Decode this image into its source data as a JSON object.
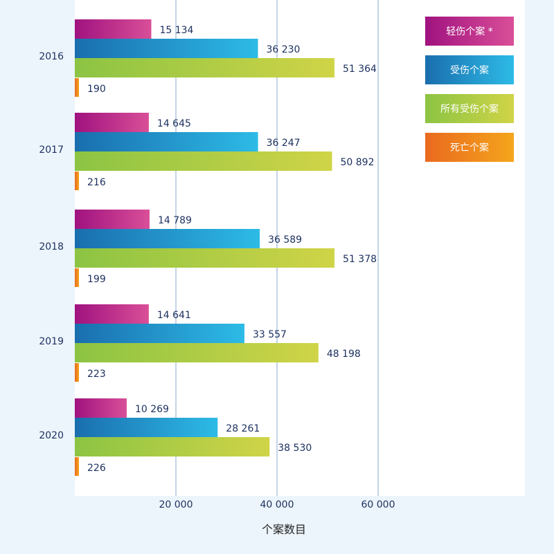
{
  "chart_data": {
    "type": "bar",
    "orientation": "horizontal",
    "title": "",
    "xlabel": "个案数目",
    "ylabel": "",
    "xlim": [
      0,
      89000
    ],
    "xticks": [
      20000,
      40000,
      60000
    ],
    "xtick_labels": [
      "20 000",
      "40 000",
      "60 000"
    ],
    "grid": true,
    "legend_position": "top-right",
    "categories": [
      "2016",
      "2017",
      "2018",
      "2019",
      "2020"
    ],
    "series": [
      {
        "name": "轻伤个案 *",
        "key": "minor",
        "color_start": "#a0127f",
        "color_end": "#d94f98",
        "values": [
          15134,
          14645,
          14789,
          14641,
          10269
        ],
        "labels": [
          "15 134",
          "14 645",
          "14 789",
          "14 641",
          "10 269"
        ]
      },
      {
        "name": "受伤个案",
        "key": "injury",
        "color_start": "#1a6eae",
        "color_end": "#2dbbe6",
        "values": [
          36230,
          36247,
          36589,
          33557,
          28261
        ],
        "labels": [
          "36 230",
          "36 247",
          "36 589",
          "33 557",
          "28 261"
        ]
      },
      {
        "name": "所有受伤个案",
        "key": "all_injury",
        "color_start": "#8cc443",
        "color_end": "#d0d447",
        "values": [
          51364,
          50892,
          51378,
          48198,
          38530
        ],
        "labels": [
          "51 364",
          "50 892",
          "51 378",
          "48 198",
          "38 530"
        ]
      },
      {
        "name": "死亡个案",
        "key": "death",
        "color_start": "#ea6a1f",
        "color_end": "#f4a51c",
        "values": [
          190,
          216,
          199,
          223,
          226
        ],
        "labels": [
          "190",
          "216",
          "199",
          "223",
          "226"
        ]
      }
    ]
  }
}
